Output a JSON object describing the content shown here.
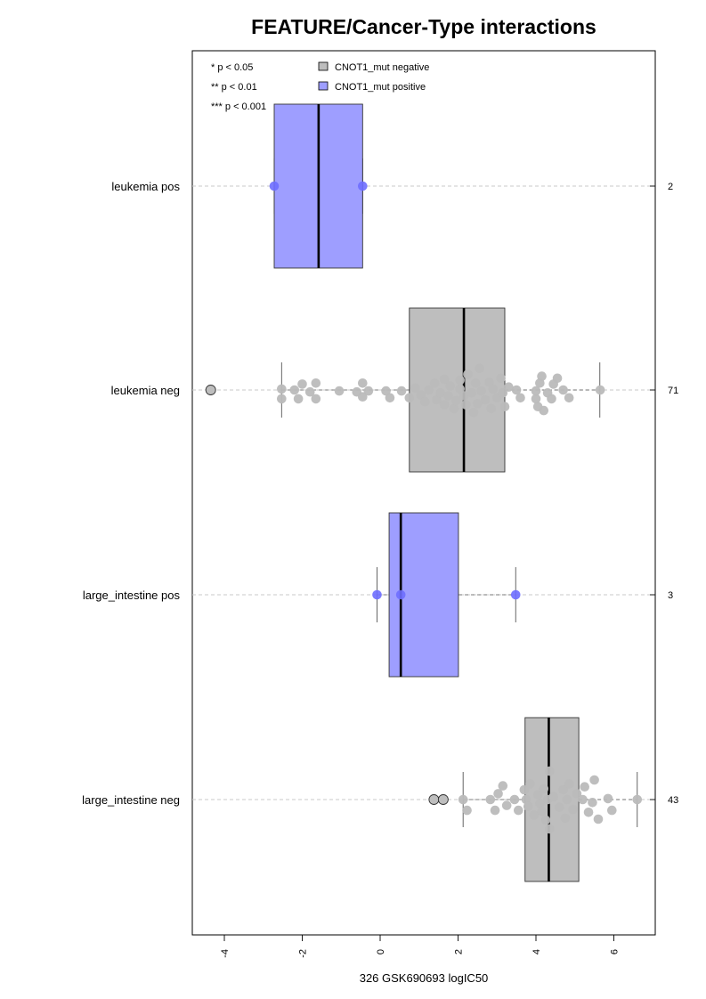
{
  "chart_data": {
    "type": "boxplot",
    "title": "FEATURE/Cancer-Type interactions",
    "xlabel": "326 GSK690693 logIC50",
    "xlim": [
      -4.8,
      7.0
    ],
    "xticks": [
      "-4",
      "-2",
      "0",
      "2",
      "4",
      "6"
    ],
    "xtick_values": [
      -4,
      -2,
      0,
      2,
      4,
      6
    ],
    "significance_legend": [
      "* p < 0.05",
      "** p < 0.01",
      "*** p < 0.001"
    ],
    "legend": [
      {
        "label": "CNOT1_mut negative",
        "color": "#bebebe"
      },
      {
        "label": "CNOT1_mut positive",
        "color": "#9e9eff"
      }
    ],
    "groups": [
      {
        "name": "leukemia pos",
        "n": "2",
        "status": "positive",
        "q1": -2.72,
        "median": -1.58,
        "q3": -0.45,
        "whisker_low": -2.72,
        "whisker_high": -0.45,
        "points": [
          [
            -2.72,
            0
          ],
          [
            -0.45,
            0
          ]
        ],
        "outliers": []
      },
      {
        "name": "leukemia neg",
        "n": "71",
        "status": "negative",
        "q1": 0.75,
        "median": 2.15,
        "q3": 3.2,
        "whisker_low": -2.53,
        "whisker_high": 5.64,
        "points": [
          [
            -2.53,
            0.45
          ],
          [
            -2.53,
            -0.05
          ],
          [
            -2.2,
            0.0
          ],
          [
            -2.1,
            0.45
          ],
          [
            -2.0,
            -0.3
          ],
          [
            -1.8,
            0.1
          ],
          [
            -1.65,
            0.45
          ],
          [
            -1.65,
            -0.35
          ],
          [
            -1.05,
            0.05
          ],
          [
            -0.6,
            0.1
          ],
          [
            -0.45,
            -0.35
          ],
          [
            -0.45,
            0.35
          ],
          [
            -0.3,
            0.05
          ],
          [
            0.15,
            0.05
          ],
          [
            0.25,
            0.4
          ],
          [
            0.55,
            0.05
          ],
          [
            0.75,
            0.4
          ],
          [
            0.9,
            -0.1
          ],
          [
            1.05,
            0.25
          ],
          [
            1.15,
            0.6
          ],
          [
            1.25,
            0.0
          ],
          [
            1.4,
            -0.35
          ],
          [
            1.45,
            0.5
          ],
          [
            1.55,
            0.15
          ],
          [
            1.65,
            -0.55
          ],
          [
            1.65,
            0.75
          ],
          [
            1.75,
            0.3
          ],
          [
            1.8,
            -0.2
          ],
          [
            1.9,
            0.95
          ],
          [
            1.95,
            0.55
          ],
          [
            2.05,
            -0.05
          ],
          [
            2.05,
            -0.5
          ],
          [
            2.15,
            0.3
          ],
          [
            2.2,
            0.75
          ],
          [
            2.25,
            -0.8
          ],
          [
            2.35,
            0.15
          ],
          [
            2.4,
            1.15
          ],
          [
            2.45,
            -0.35
          ],
          [
            2.5,
            0.7
          ],
          [
            2.55,
            -1.1
          ],
          [
            2.6,
            0.05
          ],
          [
            2.7,
            0.5
          ],
          [
            2.8,
            -0.4
          ],
          [
            2.85,
            0.95
          ],
          [
            2.9,
            -0.05
          ],
          [
            3.0,
            0.4
          ],
          [
            3.1,
            -0.6
          ],
          [
            3.15,
            0.15
          ],
          [
            3.2,
            0.85
          ],
          [
            3.3,
            -0.15
          ],
          [
            3.5,
            0.0
          ],
          [
            3.6,
            0.4
          ],
          [
            4.0,
            0.05
          ],
          [
            4.0,
            0.45
          ],
          [
            4.05,
            0.85
          ],
          [
            4.1,
            -0.35
          ],
          [
            4.15,
            -0.7
          ],
          [
            4.2,
            1.05
          ],
          [
            4.3,
            0.15
          ],
          [
            4.4,
            0.45
          ],
          [
            4.45,
            -0.3
          ],
          [
            4.55,
            -0.6
          ],
          [
            4.7,
            0.0
          ],
          [
            4.85,
            0.4
          ],
          [
            5.65,
            0.0
          ]
        ],
        "outliers": [
          -4.35
        ]
      },
      {
        "name": "large_intestine pos",
        "n": "3",
        "status": "positive",
        "q1": 0.23,
        "median": 0.53,
        "q3": 2.01,
        "whisker_low": -0.08,
        "whisker_high": 3.48,
        "points": [
          [
            -0.08,
            0
          ],
          [
            0.53,
            0
          ],
          [
            3.48,
            0
          ]
        ],
        "outliers": []
      },
      {
        "name": "large_intestine neg",
        "n": "43",
        "status": "negative",
        "q1": 3.72,
        "median": 4.33,
        "q3": 5.1,
        "whisker_low": 2.13,
        "whisker_high": 6.6,
        "points": [
          [
            2.13,
            0.0
          ],
          [
            2.23,
            0.55
          ],
          [
            2.83,
            0.0
          ],
          [
            2.95,
            0.55
          ],
          [
            3.03,
            -0.3
          ],
          [
            3.15,
            -0.7
          ],
          [
            3.25,
            0.3
          ],
          [
            3.45,
            0.0
          ],
          [
            3.55,
            0.55
          ],
          [
            3.7,
            -0.5
          ],
          [
            3.75,
            0.0
          ],
          [
            3.8,
            0.35
          ],
          [
            3.85,
            -0.8
          ],
          [
            3.95,
            0.8
          ],
          [
            4.05,
            -0.25
          ],
          [
            4.1,
            0.2
          ],
          [
            4.15,
            0.6
          ],
          [
            4.2,
            -0.55
          ],
          [
            4.25,
            1.05
          ],
          [
            4.3,
            0.0
          ],
          [
            4.35,
            -1.45
          ],
          [
            4.35,
            1.5
          ],
          [
            4.45,
            -0.15
          ],
          [
            4.6,
            0.4
          ],
          [
            4.7,
            -0.5
          ],
          [
            4.75,
            0.95
          ],
          [
            4.8,
            0.0
          ],
          [
            4.85,
            -0.8
          ],
          [
            4.95,
            0.5
          ],
          [
            5.05,
            -0.3
          ],
          [
            5.2,
            0.0
          ],
          [
            5.25,
            -0.65
          ],
          [
            5.35,
            0.65
          ],
          [
            5.45,
            0.15
          ],
          [
            5.5,
            -1.0
          ],
          [
            5.6,
            1.0
          ],
          [
            5.85,
            -0.05
          ],
          [
            5.95,
            0.55
          ],
          [
            6.6,
            0.0
          ]
        ],
        "outliers": [
          1.38,
          1.62
        ]
      }
    ]
  }
}
